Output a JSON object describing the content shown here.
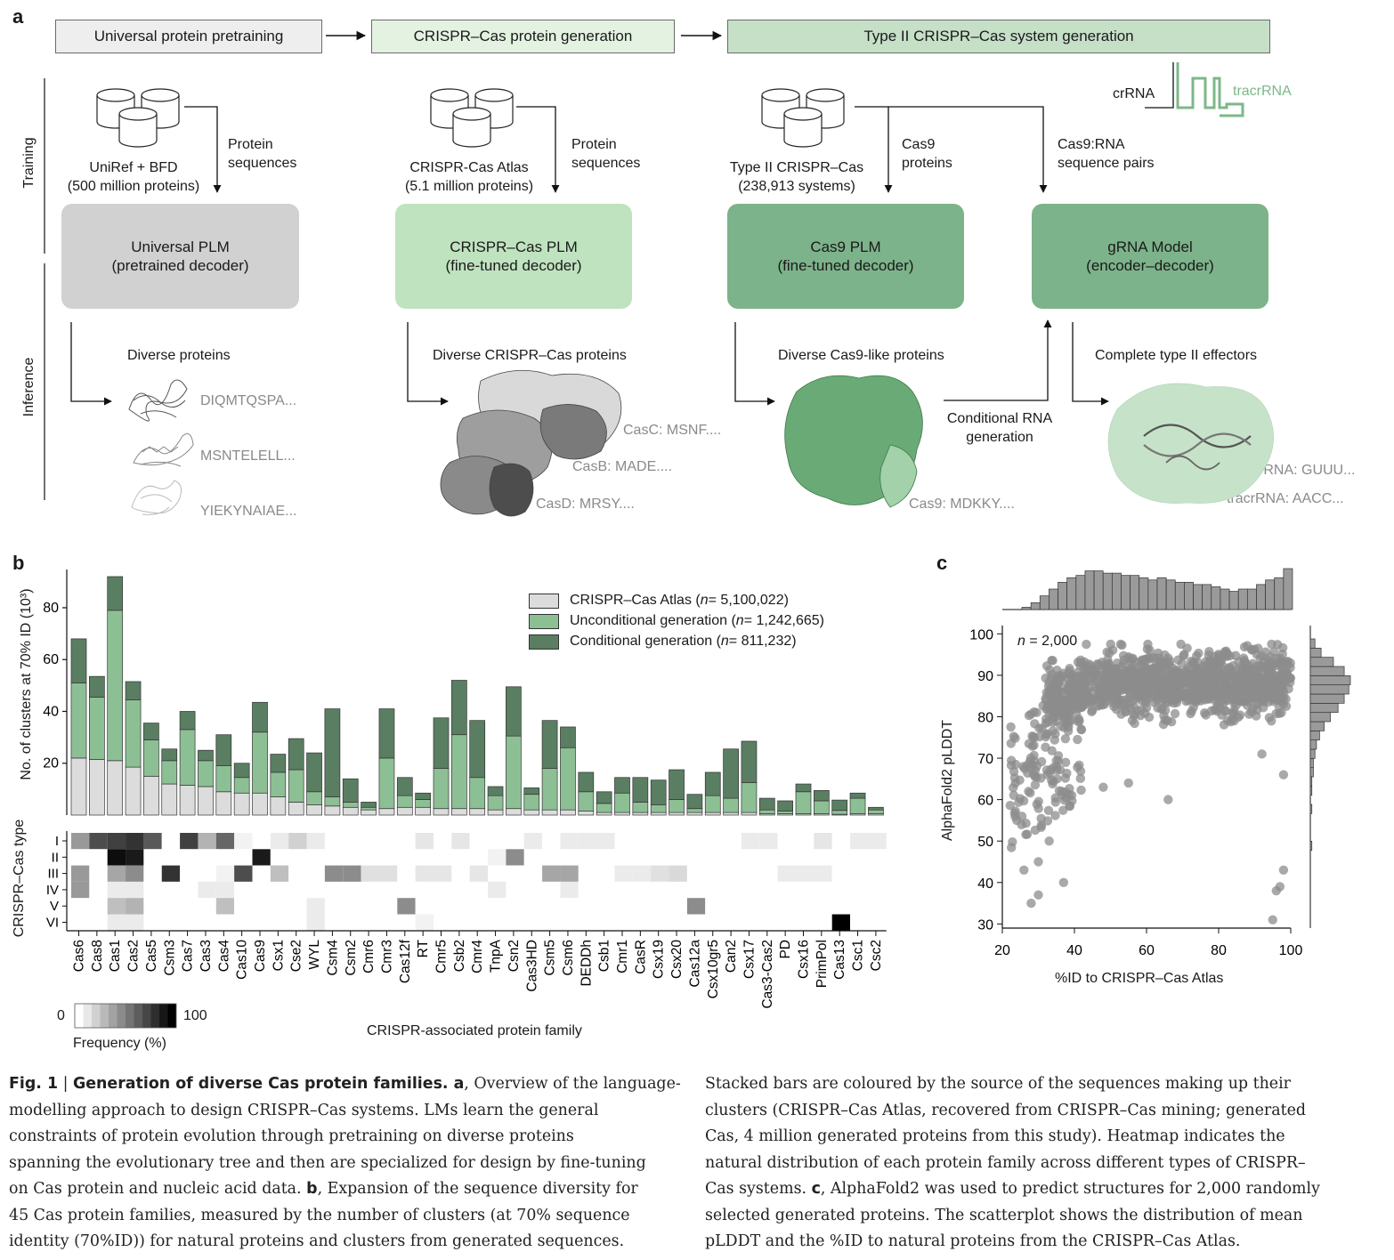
{
  "panel_a": {
    "letter": "a",
    "stages": [
      "Universal protein pretraining",
      "CRISPR–Cas protein generation",
      "Type II CRISPR–Cas system generation"
    ],
    "side_labels": {
      "training": "Training",
      "inference": "Inference"
    },
    "databases": [
      {
        "name": "UniRef + BFD",
        "size": "(500 million proteins)",
        "arrow_label_1": "Protein",
        "arrow_label_2": "sequences"
      },
      {
        "name": "CRISPR-Cas Atlas",
        "size": "(5.1 million proteins)",
        "arrow_label_1": "Protein",
        "arrow_label_2": "sequences"
      },
      {
        "name": "Type II CRISPR–Cas",
        "size": "(238,913 systems)",
        "arrow_label_1": "Cas9",
        "arrow_label_2": "proteins"
      }
    ],
    "pairs_label_1": "Cas9:RNA",
    "pairs_label_2": "sequence pairs",
    "rna_labels": {
      "crrna": "crRNA",
      "tracrrna": "tracrRNA"
    },
    "models": [
      {
        "name": "Universal PLM",
        "sub": "(pretrained decoder)",
        "color": "#cfcfcf"
      },
      {
        "name": "CRISPR–Cas PLM",
        "sub": "(fine-tuned decoder)",
        "color": "#bfe3bf"
      },
      {
        "name": "Cas9 PLM",
        "sub": "(fine-tuned decoder)",
        "color": "#7db38a"
      },
      {
        "name": "gRNA Model",
        "sub": "(encoder–decoder)",
        "color": "#7db38a"
      }
    ],
    "outputs": [
      "Diverse proteins",
      "Diverse CRISPR–Cas proteins",
      "Diverse Cas9-like proteins",
      "Complete type II effectors"
    ],
    "seqs_1": [
      "DIQMTQSPA...",
      "MSNTELELL...",
      "YIEKYNAIAE..."
    ],
    "seqs_2": [
      "CasC: MSNF....",
      "CasB: MADE....",
      "CasD: MRSY...."
    ],
    "seq_3": "Cas9: MDKKY....",
    "cond_label_1": "Conditional RNA",
    "cond_label_2": "generation",
    "seqs_4": [
      "crRNA: GUUU...",
      "tracrRNA: AACC..."
    ]
  },
  "panel_b": {
    "letter": "b",
    "ylabel": "No. of clusters at 70% ID (10³)",
    "heat_ylabel": "CRISPR–Cas type",
    "xlabel": "CRISPR-associated protein family",
    "colorbar": {
      "min": "0",
      "max": "100",
      "label": "Frequency (%)"
    },
    "legend": [
      {
        "label": "CRISPR–Cas Atlas (",
        "n": "n",
        "rest": " = 5,100,022)",
        "color": "#dcdcdc"
      },
      {
        "label": "Unconditional generation (",
        "n": "n",
        "rest": " = 1,242,665)",
        "color": "#8dbf95"
      },
      {
        "label": "Conditional generation (",
        "n": "n",
        "rest": " = 811,232)",
        "color": "#5a7e62"
      }
    ],
    "types": [
      "I",
      "II",
      "III",
      "IV",
      "V",
      "VI"
    ]
  },
  "panel_c": {
    "letter": "c",
    "ylabel": "AlphaFold2 pLDDT",
    "xlabel": "%ID to CRISPR–Cas Atlas",
    "n_label": "n",
    "n_value": " = 2,000"
  },
  "chart_data": [
    {
      "type": "bar",
      "stacked": true,
      "categories": [
        "Cas6",
        "Cas8",
        "Cas1",
        "Cas2",
        "Cas5",
        "Csm3",
        "Cas7",
        "Cas3",
        "Cas4",
        "Cas10",
        "Cas9",
        "Csx1",
        "Cse2",
        "WYL",
        "Csm4",
        "Csm2",
        "Cmr6",
        "Cmr3",
        "Cas12f",
        "RT",
        "Cmr5",
        "Csb2",
        "Cmr4",
        "TnpA",
        "Csn2",
        "Cas3HD",
        "Csm5",
        "Csm6",
        "DEDDh",
        "Csb1",
        "Cmr1",
        "CasR",
        "Csx19",
        "Csx20",
        "Cas12a",
        "Csx10gr5",
        "Can2",
        "Csx17",
        "Cas3-Cas2",
        "PD",
        "Csx16",
        "PrimPol",
        "Cas13",
        "Csc1",
        "Csc2"
      ],
      "series": [
        {
          "name": "CRISPR–Cas Atlas",
          "values": [
            22,
            21.5,
            21,
            18.5,
            15,
            12,
            11.5,
            11,
            9,
            8.5,
            8.5,
            7,
            5,
            4,
            3.5,
            3,
            2,
            2.5,
            3,
            3,
            2.5,
            2.5,
            2.5,
            2,
            2.5,
            2,
            2,
            2,
            1.5,
            1,
            1,
            1,
            1,
            1,
            1,
            1,
            1,
            1,
            0.5,
            0.5,
            0.5,
            0.5,
            0.3,
            0.5,
            0.5
          ]
        },
        {
          "name": "Unconditional generation",
          "values": [
            29,
            24,
            58,
            26,
            14,
            9,
            21.5,
            10,
            10,
            6,
            23.5,
            9.5,
            12.5,
            5,
            3.5,
            2,
            1,
            19.5,
            4.5,
            3,
            15.5,
            28.5,
            12,
            5.5,
            28,
            6,
            16,
            24,
            7.5,
            3.5,
            7.5,
            4,
            3,
            5,
            1.5,
            6.5,
            5.5,
            11.5,
            1.5,
            1,
            8.5,
            5,
            1.5,
            6,
            1.5
          ]
        },
        {
          "name": "Conditional generation",
          "values": [
            17,
            8,
            13,
            7,
            6.5,
            4.5,
            7,
            4,
            12,
            5.5,
            11.5,
            7,
            12,
            15,
            34,
            9,
            2,
            19,
            7,
            2.5,
            19.5,
            21,
            22,
            3.5,
            19,
            2.5,
            18.5,
            8,
            7.5,
            4.5,
            6,
            9.5,
            9.5,
            11.5,
            5.5,
            9,
            19,
            16,
            4.5,
            4,
            3,
            4,
            4,
            2,
            1
          ]
        }
      ],
      "ylabel": "No. of clusters at 70% ID (10³)",
      "yticks": [
        20,
        40,
        60,
        80
      ],
      "ylim": [
        0,
        92
      ],
      "xlabel": "CRISPR-associated protein family",
      "legend_position": "top-right"
    },
    {
      "type": "heatmap",
      "rows": [
        "I",
        "II",
        "III",
        "IV",
        "V",
        "VI"
      ],
      "columns": "same as stacked bar categories",
      "values": [
        [
          40,
          70,
          75,
          80,
          65,
          0,
          75,
          30,
          60,
          5,
          0,
          8,
          18,
          8,
          0,
          0,
          0,
          0,
          0,
          10,
          0,
          10,
          0,
          0,
          0,
          8,
          0,
          8,
          8,
          8,
          0,
          0,
          0,
          0,
          0,
          0,
          0,
          8,
          8,
          0,
          0,
          10,
          0,
          8,
          8
        ],
        [
          0,
          0,
          95,
          90,
          0,
          0,
          0,
          0,
          0,
          0,
          90,
          0,
          0,
          0,
          0,
          0,
          0,
          0,
          0,
          0,
          0,
          0,
          0,
          5,
          45,
          0,
          0,
          0,
          0,
          0,
          0,
          0,
          0,
          0,
          0,
          0,
          0,
          0,
          0,
          0,
          0,
          0,
          0,
          0,
          0
        ],
        [
          40,
          0,
          35,
          45,
          0,
          80,
          0,
          0,
          5,
          70,
          0,
          25,
          0,
          0,
          45,
          45,
          12,
          12,
          0,
          10,
          10,
          0,
          10,
          0,
          0,
          0,
          35,
          35,
          0,
          0,
          8,
          8,
          12,
          15,
          0,
          0,
          0,
          0,
          0,
          8,
          8,
          8,
          0,
          0,
          0
        ],
        [
          40,
          0,
          8,
          8,
          0,
          0,
          0,
          8,
          8,
          0,
          0,
          0,
          0,
          0,
          0,
          0,
          0,
          0,
          0,
          0,
          0,
          0,
          0,
          8,
          0,
          0,
          0,
          8,
          0,
          0,
          0,
          0,
          0,
          0,
          0,
          0,
          0,
          0,
          0,
          0,
          0,
          0,
          0,
          0,
          0
        ],
        [
          0,
          0,
          25,
          30,
          0,
          0,
          0,
          0,
          25,
          0,
          0,
          0,
          0,
          8,
          0,
          0,
          0,
          0,
          45,
          0,
          0,
          0,
          0,
          0,
          0,
          0,
          0,
          0,
          0,
          0,
          0,
          0,
          0,
          0,
          45,
          0,
          0,
          0,
          0,
          0,
          0,
          0,
          0,
          0,
          0
        ],
        [
          0,
          0,
          8,
          8,
          0,
          0,
          0,
          0,
          0,
          0,
          0,
          0,
          0,
          8,
          0,
          0,
          0,
          0,
          0,
          5,
          0,
          0,
          0,
          0,
          0,
          0,
          0,
          0,
          0,
          0,
          0,
          0,
          0,
          0,
          0,
          0,
          0,
          0,
          0,
          0,
          0,
          0,
          100,
          0,
          0
        ]
      ],
      "colorbar": {
        "min": 0,
        "max": 100,
        "label": "Frequency (%)"
      }
    },
    {
      "type": "scatter",
      "n": 2000,
      "xlabel": "%ID to CRISPR–Cas Atlas",
      "ylabel": "AlphaFold2 pLDDT",
      "xlim": [
        20,
        100
      ],
      "ylim": [
        29,
        102
      ],
      "xticks": [
        20,
        40,
        60,
        80,
        100
      ],
      "yticks": [
        30,
        40,
        50,
        60,
        70,
        80,
        90,
        100
      ],
      "summary": "Dense cloud mostly between pLDDT 80–97 for %ID 35–100; low-confidence tail (pLDDT 35–70) at %ID 22–40; scattered outliers near %ID 95–100 at pLDDT 31–45.",
      "marginal_x_hist": [
        1,
        3,
        6,
        9,
        12,
        14,
        15,
        17,
        17,
        16,
        16,
        15,
        15,
        14,
        13,
        14,
        13,
        12,
        12,
        11,
        11,
        10,
        9,
        8,
        9,
        9,
        11,
        13,
        14,
        18
      ],
      "marginal_y_hist": [
        0,
        0,
        0,
        0,
        0,
        0,
        0,
        1,
        0,
        0,
        0,
        1,
        0,
        1,
        1,
        2,
        2,
        3,
        4,
        6,
        9,
        13,
        18,
        22,
        25,
        26,
        22,
        15,
        7,
        3
      ]
    }
  ],
  "caption": {
    "fig": "Fig. 1",
    "sep": " | ",
    "title": "Generation of diverse Cas protein families.",
    "col1": [
      {
        "b": " a",
        "t": ", Overview of the language-"
      },
      {
        "t": "modelling approach to design CRISPR–Cas systems. LMs learn the general"
      },
      {
        "t": "constraints of protein evolution through pretraining on diverse proteins"
      },
      {
        "t": "spanning the evolutionary tree and then are specialized for design by fine-tuning"
      },
      {
        "t": "on Cas protein and nucleic acid data. ",
        "b": "b",
        "t2": ", Expansion of the sequence diversity for"
      },
      {
        "t": "45 Cas protein families, measured by the number of clusters (at 70% sequence"
      },
      {
        "t": "identity (70%ID)) for natural proteins and clusters from generated sequences."
      }
    ],
    "col2": [
      "Stacked bars are coloured by the source of the sequences making up their",
      "clusters (CRISPR–Cas Atlas, recovered from CRISPR–Cas mining; generated",
      "Cas, 4 million generated proteins from this study). Heatmap indicates the",
      "natural distribution of each protein family across different types of CRISPR–",
      "Cas systems. ",
      "selected generated proteins. The scatterplot shows the distribution of mean",
      "pLDDT and the %ID to natural proteins from the CRISPR–Cas Atlas."
    ],
    "col2_line5_b": "c",
    "col2_line5_rest": ", AlphaFold2 was used to predict structures for 2,000 randomly"
  }
}
